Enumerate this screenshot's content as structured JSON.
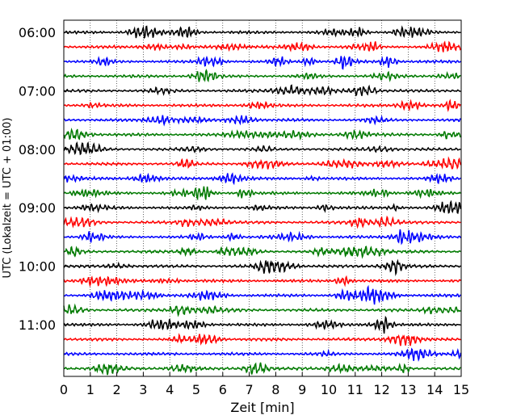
{
  "chart_data": {
    "type": "line",
    "subtype": "helicorder",
    "xlabel": "Zeit  [min]",
    "ylabel": "UTC (Lokalzeit = UTC + 01:00)",
    "xlim": [
      0,
      15
    ],
    "x_ticks": [
      "0",
      "1",
      "2",
      "3",
      "4",
      "5",
      "6",
      "7",
      "8",
      "9",
      "10",
      "11",
      "12",
      "13",
      "14",
      "15"
    ],
    "y_tick_labels": [
      "06:00",
      "07:00",
      "08:00",
      "09:00",
      "10:00",
      "11:00"
    ],
    "rows_per_hour": 4,
    "row_count": 24,
    "grid": "vertical dotted",
    "trace_colors": [
      "#000000",
      "#ff0000",
      "#0000ff",
      "#007a00"
    ]
  }
}
